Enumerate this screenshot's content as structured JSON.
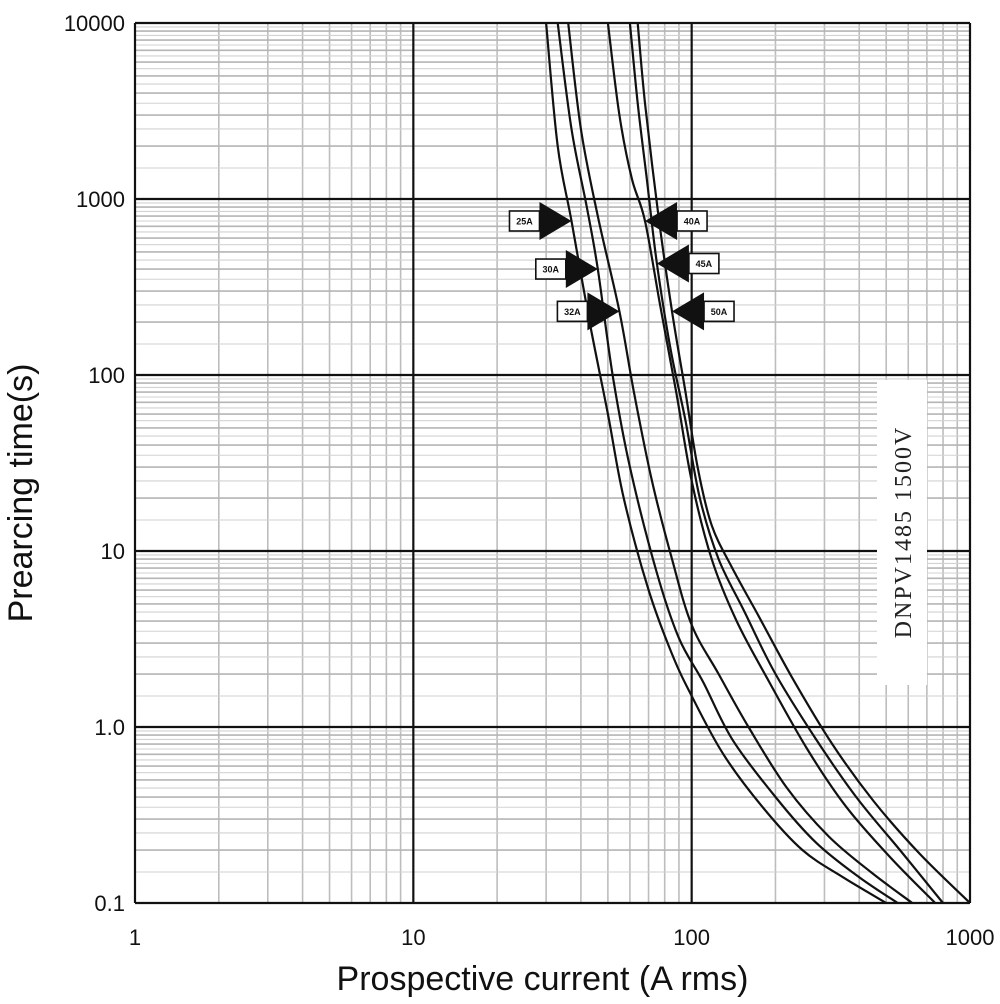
{
  "chart_data": {
    "type": "line",
    "title": "",
    "xlabel": "Prospective current (A rms)",
    "ylabel": "Prearcing time(s)",
    "x_scale": "log",
    "y_scale": "log",
    "xlim": [
      1,
      1000
    ],
    "ylim": [
      0.1,
      10000
    ],
    "x_ticks": [
      1,
      10,
      100,
      1000
    ],
    "x_tick_labels": [
      "1",
      "10",
      "100",
      "1000"
    ],
    "y_ticks": [
      0.1,
      1,
      10,
      100,
      1000,
      10000
    ],
    "y_tick_labels": [
      "0.1",
      "1.0",
      "10",
      "100",
      "1000",
      "10000"
    ],
    "grid": true,
    "annotation": "DNPV1485 1500V",
    "series": [
      {
        "name": "25A",
        "arrow": "right",
        "label_point": [
          37,
          750
        ],
        "x": [
          30,
          33,
          37,
          43,
          50,
          57,
          70,
          85,
          100,
          130,
          180,
          250,
          350,
          500
        ],
        "y": [
          10000,
          2000,
          750,
          200,
          60,
          20,
          6,
          2.6,
          1.5,
          0.7,
          0.35,
          0.2,
          0.14,
          0.1
        ]
      },
      {
        "name": "30A",
        "arrow": "right",
        "label_point": [
          46,
          400
        ],
        "x": [
          33,
          37,
          42,
          46,
          52,
          60,
          75,
          90,
          110,
          140,
          200,
          280,
          400,
          550
        ],
        "y": [
          10000,
          2500,
          900,
          400,
          100,
          30,
          7.5,
          3.2,
          1.8,
          0.85,
          0.4,
          0.22,
          0.14,
          0.1
        ]
      },
      {
        "name": "32A",
        "arrow": "right",
        "label_point": [
          55,
          230
        ],
        "x": [
          36,
          40,
          46,
          55,
          62,
          72,
          85,
          100,
          125,
          160,
          220,
          310,
          440,
          620
        ],
        "y": [
          10000,
          2500,
          800,
          230,
          80,
          25,
          9,
          3.8,
          2,
          1,
          0.45,
          0.24,
          0.15,
          0.1
        ]
      },
      {
        "name": "40A",
        "arrow": "left",
        "label_point": [
          68,
          750
        ],
        "x": [
          50,
          55,
          61,
          68,
          77,
          88,
          100,
          118,
          145,
          190,
          260,
          360,
          520,
          750
        ],
        "y": [
          10000,
          3000,
          1300,
          750,
          250,
          80,
          25,
          9,
          4,
          1.8,
          0.75,
          0.35,
          0.18,
          0.1
        ]
      },
      {
        "name": "45A",
        "arrow": "left",
        "label_point": [
          75,
          430
        ],
        "x": [
          60,
          64,
          69,
          75,
          84,
          95,
          107,
          125,
          155,
          200,
          280,
          390,
          560,
          800
        ],
        "y": [
          10000,
          3500,
          1300,
          430,
          140,
          55,
          20,
          9,
          4.5,
          2,
          0.85,
          0.4,
          0.2,
          0.1
        ]
      },
      {
        "name": "50A",
        "arrow": "left",
        "label_point": [
          85,
          230
        ],
        "x": [
          64,
          68,
          76,
          85,
          95,
          105,
          118,
          140,
          175,
          230,
          320,
          450,
          660,
          1000
        ],
        "y": [
          10000,
          3500,
          800,
          230,
          80,
          30,
          14,
          8,
          4.2,
          1.9,
          0.8,
          0.38,
          0.19,
          0.1
        ]
      }
    ]
  }
}
